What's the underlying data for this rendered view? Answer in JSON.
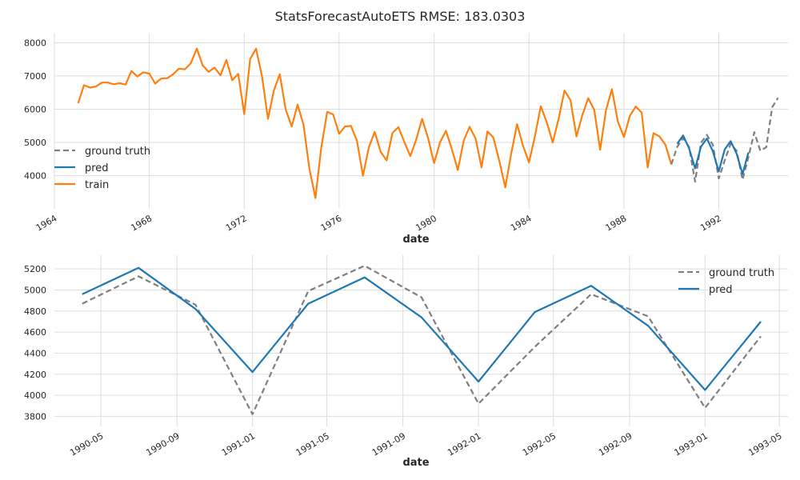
{
  "figure": {
    "title": "StatsForecastAutoETS RMSE: 183.0303"
  },
  "colors": {
    "ground_truth": "#7f7f7f",
    "pred": "#1f77b4",
    "train": "#ff7f0e",
    "grid": "#dddddd",
    "text": "#262626"
  },
  "chart_data": [
    {
      "type": "line",
      "xlabel": "date",
      "ylabel": "",
      "x_type": "date",
      "xlim": [
        "1964-01-01",
        "1994-12-01"
      ],
      "ylim": [
        3150,
        8200
      ],
      "x_ticks": [
        "1964-01-01",
        "1968-01-01",
        "1972-01-01",
        "1976-01-01",
        "1980-01-01",
        "1984-01-01",
        "1988-01-01",
        "1992-01-01"
      ],
      "x_tick_labels": [
        "1964",
        "1968",
        "1972",
        "1976",
        "1980",
        "1984",
        "1988",
        "1992"
      ],
      "y_ticks": [
        4000,
        5000,
        6000,
        7000,
        8000
      ],
      "y_tick_labels": [
        "4000",
        "5000",
        "6000",
        "7000",
        "8000"
      ],
      "grid": true,
      "legend": {
        "placement": "left",
        "entries": [
          "ground truth",
          "pred",
          "train"
        ]
      },
      "series": [
        {
          "name": "train",
          "style": "solid",
          "points": [
            [
              "1965-01-01",
              6180
            ],
            [
              "1965-04-01",
              6720
            ],
            [
              "1965-07-01",
              6650
            ],
            [
              "1965-10-01",
              6680
            ],
            [
              "1966-01-01",
              6800
            ],
            [
              "1966-04-01",
              6800
            ],
            [
              "1966-07-01",
              6750
            ],
            [
              "1966-10-01",
              6780
            ],
            [
              "1967-01-01",
              6740
            ],
            [
              "1967-04-01",
              7150
            ],
            [
              "1967-07-01",
              6980
            ],
            [
              "1967-10-01",
              7110
            ],
            [
              "1968-01-01",
              7070
            ],
            [
              "1968-04-01",
              6770
            ],
            [
              "1968-07-01",
              6920
            ],
            [
              "1968-10-01",
              6930
            ],
            [
              "1969-01-01",
              7050
            ],
            [
              "1969-04-01",
              7220
            ],
            [
              "1969-07-01",
              7200
            ],
            [
              "1969-10-01",
              7380
            ],
            [
              "1970-01-01",
              7820
            ],
            [
              "1970-04-01",
              7320
            ],
            [
              "1970-07-01",
              7120
            ],
            [
              "1970-10-01",
              7250
            ],
            [
              "1971-01-01",
              7020
            ],
            [
              "1971-04-01",
              7480
            ],
            [
              "1971-07-01",
              6870
            ],
            [
              "1971-10-01",
              7060
            ],
            [
              "1972-01-01",
              5850
            ],
            [
              "1972-04-01",
              7510
            ],
            [
              "1972-07-01",
              7820
            ],
            [
              "1972-10-01",
              6980
            ],
            [
              "1973-01-01",
              5710
            ],
            [
              "1973-04-01",
              6560
            ],
            [
              "1973-07-01",
              7050
            ],
            [
              "1973-10-01",
              5980
            ],
            [
              "1974-01-01",
              5480
            ],
            [
              "1974-04-01",
              6140
            ],
            [
              "1974-07-01",
              5530
            ],
            [
              "1974-10-01",
              4200
            ],
            [
              "1975-01-01",
              3330
            ],
            [
              "1975-04-01",
              4850
            ],
            [
              "1975-07-01",
              5920
            ],
            [
              "1975-10-01",
              5840
            ],
            [
              "1976-01-01",
              5260
            ],
            [
              "1976-04-01",
              5480
            ],
            [
              "1976-07-01",
              5500
            ],
            [
              "1976-10-01",
              5050
            ],
            [
              "1977-01-01",
              4000
            ],
            [
              "1977-04-01",
              4850
            ],
            [
              "1977-07-01",
              5320
            ],
            [
              "1977-10-01",
              4720
            ],
            [
              "1978-01-01",
              4460
            ],
            [
              "1978-04-01",
              5290
            ],
            [
              "1978-07-01",
              5460
            ],
            [
              "1978-10-01",
              5010
            ],
            [
              "1979-01-01",
              4590
            ],
            [
              "1979-04-01",
              5080
            ],
            [
              "1979-07-01",
              5710
            ],
            [
              "1979-10-01",
              5130
            ],
            [
              "1980-01-01",
              4380
            ],
            [
              "1980-04-01",
              5000
            ],
            [
              "1980-07-01",
              5350
            ],
            [
              "1980-10-01",
              4800
            ],
            [
              "1981-01-01",
              4170
            ],
            [
              "1981-04-01",
              5050
            ],
            [
              "1981-07-01",
              5470
            ],
            [
              "1981-10-01",
              5120
            ],
            [
              "1982-01-01",
              4250
            ],
            [
              "1982-04-01",
              5330
            ],
            [
              "1982-07-01",
              5150
            ],
            [
              "1982-10-01",
              4450
            ],
            [
              "1983-01-01",
              3650
            ],
            [
              "1983-04-01",
              4650
            ],
            [
              "1983-07-01",
              5550
            ],
            [
              "1983-10-01",
              4900
            ],
            [
              "1984-01-01",
              4400
            ],
            [
              "1984-04-01",
              5180
            ],
            [
              "1984-07-01",
              6090
            ],
            [
              "1984-10-01",
              5600
            ],
            [
              "1985-01-01",
              5000
            ],
            [
              "1985-04-01",
              5710
            ],
            [
              "1985-07-01",
              6560
            ],
            [
              "1985-10-01",
              6270
            ],
            [
              "1986-01-01",
              5180
            ],
            [
              "1986-04-01",
              5820
            ],
            [
              "1986-07-01",
              6330
            ],
            [
              "1986-10-01",
              5980
            ],
            [
              "1987-01-01",
              4780
            ],
            [
              "1987-04-01",
              5970
            ],
            [
              "1987-07-01",
              6600
            ],
            [
              "1987-10-01",
              5620
            ],
            [
              "1988-01-01",
              5160
            ],
            [
              "1988-04-01",
              5800
            ],
            [
              "1988-07-01",
              6080
            ],
            [
              "1988-10-01",
              5900
            ],
            [
              "1989-01-01",
              4250
            ],
            [
              "1989-04-01",
              5280
            ],
            [
              "1989-07-01",
              5180
            ],
            [
              "1989-10-01",
              4930
            ],
            [
              "1990-01-01",
              4340
            ]
          ]
        },
        {
          "name": "ground truth",
          "style": "dashed",
          "points": [
            [
              "1990-01-01",
              4340
            ],
            [
              "1990-04-01",
              4870
            ],
            [
              "1990-07-01",
              5130
            ],
            [
              "1990-10-01",
              4860
            ],
            [
              "1991-01-01",
              3820
            ],
            [
              "1991-04-01",
              4990
            ],
            [
              "1991-07-01",
              5230
            ],
            [
              "1991-10-01",
              4930
            ],
            [
              "1992-01-01",
              3920
            ],
            [
              "1992-04-01",
              4460
            ],
            [
              "1992-07-01",
              4960
            ],
            [
              "1992-10-01",
              4750
            ],
            [
              "1993-01-01",
              3880
            ],
            [
              "1993-04-01",
              4560
            ],
            [
              "1993-07-01",
              5310
            ],
            [
              "1993-10-01",
              4750
            ],
            [
              "1994-01-01",
              4860
            ],
            [
              "1994-04-01",
              6060
            ],
            [
              "1994-07-01",
              6340
            ]
          ]
        },
        {
          "name": "pred",
          "style": "solid",
          "points": [
            [
              "1990-04-01",
              4960
            ],
            [
              "1990-07-01",
              5210
            ],
            [
              "1990-10-01",
              4820
            ],
            [
              "1991-01-01",
              4220
            ],
            [
              "1991-04-01",
              4870
            ],
            [
              "1991-07-01",
              5120
            ],
            [
              "1991-10-01",
              4740
            ],
            [
              "1992-01-01",
              4130
            ],
            [
              "1992-04-01",
              4790
            ],
            [
              "1992-07-01",
              5040
            ],
            [
              "1992-10-01",
              4660
            ],
            [
              "1993-01-01",
              4050
            ],
            [
              "1993-04-01",
              4700
            ]
          ]
        }
      ]
    },
    {
      "type": "line",
      "xlabel": "date",
      "ylabel": "",
      "x_type": "date",
      "xlim": [
        "1990-02-15",
        "1993-05-15"
      ],
      "ylim": [
        3750,
        5300
      ],
      "x_ticks": [
        "1990-05-01",
        "1990-09-01",
        "1991-01-01",
        "1991-05-01",
        "1991-09-01",
        "1992-01-01",
        "1992-05-01",
        "1992-09-01",
        "1993-01-01",
        "1993-05-01"
      ],
      "x_tick_labels": [
        "1990-05",
        "1990-09",
        "1991-01",
        "1991-05",
        "1991-09",
        "1992-01",
        "1992-05",
        "1992-09",
        "1993-01",
        "1993-05"
      ],
      "y_ticks": [
        3800,
        4000,
        4200,
        4400,
        4600,
        4800,
        5000,
        5200
      ],
      "y_tick_labels": [
        "3800",
        "4000",
        "4200",
        "4400",
        "4600",
        "4800",
        "5000",
        "5200"
      ],
      "grid": true,
      "legend": {
        "placement": "top-right",
        "entries": [
          "ground truth",
          "pred"
        ]
      },
      "series": [
        {
          "name": "ground truth",
          "style": "dashed",
          "points": [
            [
              "1990-04-01",
              4870
            ],
            [
              "1990-07-01",
              5130
            ],
            [
              "1990-10-01",
              4860
            ],
            [
              "1991-01-01",
              3820
            ],
            [
              "1991-04-01",
              4990
            ],
            [
              "1991-07-01",
              5230
            ],
            [
              "1991-10-01",
              4930
            ],
            [
              "1992-01-01",
              3920
            ],
            [
              "1992-04-01",
              4460
            ],
            [
              "1992-07-01",
              4960
            ],
            [
              "1992-10-01",
              4750
            ],
            [
              "1993-01-01",
              3880
            ],
            [
              "1993-04-01",
              4560
            ]
          ]
        },
        {
          "name": "pred",
          "style": "solid",
          "points": [
            [
              "1990-04-01",
              4960
            ],
            [
              "1990-07-01",
              5210
            ],
            [
              "1990-10-01",
              4820
            ],
            [
              "1991-01-01",
              4220
            ],
            [
              "1991-04-01",
              4870
            ],
            [
              "1991-07-01",
              5120
            ],
            [
              "1991-10-01",
              4740
            ],
            [
              "1992-01-01",
              4130
            ],
            [
              "1992-04-01",
              4790
            ],
            [
              "1992-07-01",
              5040
            ],
            [
              "1992-10-01",
              4660
            ],
            [
              "1993-01-01",
              4050
            ],
            [
              "1993-04-01",
              4700
            ]
          ]
        }
      ]
    }
  ]
}
